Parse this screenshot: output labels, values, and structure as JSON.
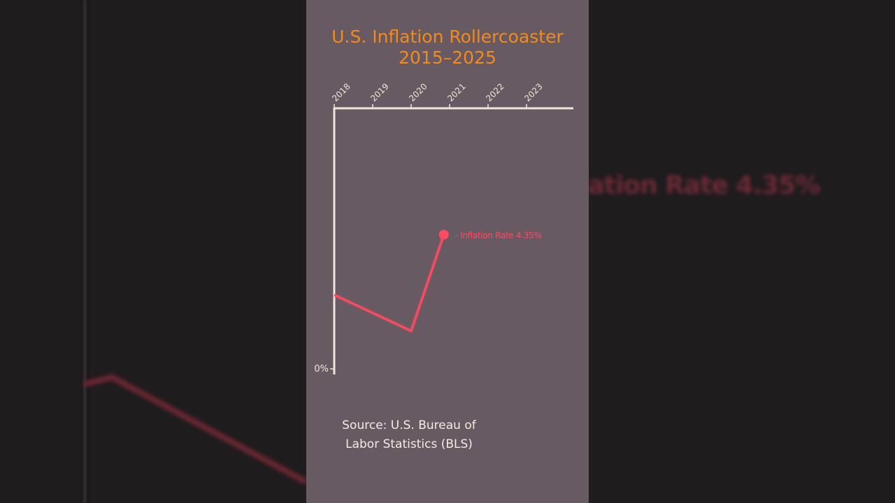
{
  "title_line1": "U.S. Inflation Rollercoaster",
  "title_line2": "2015–2025",
  "source_line1": "Source: U.S. Bureau of",
  "source_line2": "Labor Statistics (BLS)",
  "colors": {
    "panel_bg": "#675a62",
    "title": "#f28a1d",
    "line": "#ff4a63",
    "axis": "#f2e6da"
  },
  "chart_data": {
    "type": "line",
    "x_ticks": [
      "2018",
      "2019",
      "2020",
      "2021",
      "2022",
      "2023"
    ],
    "y_ticks": [
      {
        "label": "0%",
        "value": 0
      }
    ],
    "series": [
      {
        "name": "Inflation Rate",
        "x": [
          2018.0,
          2020.0,
          2020.85
        ],
        "values": [
          2.4,
          1.23,
          4.35
        ]
      }
    ],
    "end_label": "- Inflation Rate 4.35%",
    "xlim": [
      2018,
      2024.2
    ],
    "ylim": [
      0,
      8.45
    ],
    "grid": false
  }
}
